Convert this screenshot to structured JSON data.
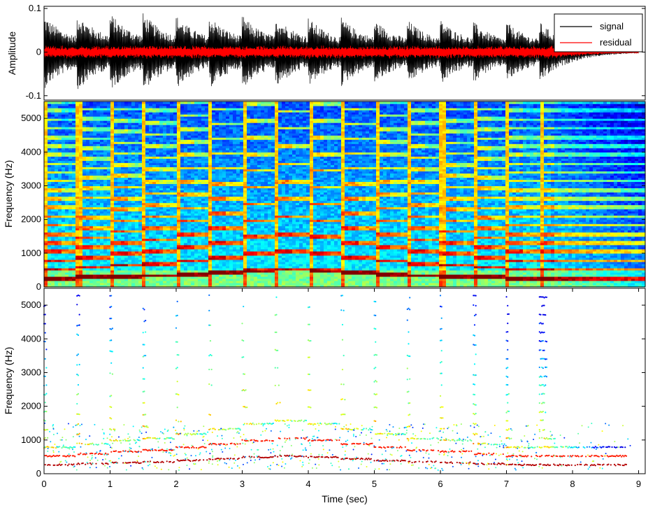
{
  "chart_data": [
    {
      "type": "line",
      "xlabel": "",
      "ylabel": "Amplitude",
      "xlim": [
        0,
        9.1
      ],
      "ylim": [
        -0.11,
        0.105
      ],
      "yticks": [
        -0.1,
        0,
        0.1
      ],
      "ytick_labels": [
        "-0.1",
        "0",
        "0.1"
      ],
      "grid": false,
      "legend_position": "top-right",
      "note_onsets_sec": [
        0.0,
        0.5,
        1.0,
        1.5,
        2.0,
        2.5,
        3.0,
        3.5,
        4.0,
        4.5,
        5.0,
        5.5,
        6.0,
        6.5,
        7.0,
        7.5
      ],
      "decay_end_sec": 9.0,
      "series": [
        {
          "name": "signal",
          "color": "#000000",
          "envelope_peaks": [
            0.085,
            0.09,
            0.09,
            0.09,
            0.085,
            0.085,
            0.085,
            0.085,
            0.08,
            0.08,
            0.075,
            0.075,
            0.075,
            0.07,
            0.07,
            0.07
          ]
        },
        {
          "name": "residual",
          "color": "#ff0000",
          "envelope_peaks": [
            0.012,
            0.01,
            0.01,
            0.01,
            0.01,
            0.01,
            0.01,
            0.01,
            0.01,
            0.01,
            0.01,
            0.01,
            0.01,
            0.01,
            0.01,
            0.01
          ]
        }
      ]
    },
    {
      "type": "heatmap",
      "xlabel": "",
      "ylabel": "Frequency (Hz)",
      "xlim": [
        0,
        9.1
      ],
      "ylim": [
        0,
        5500
      ],
      "yticks": [
        0,
        1000,
        2000,
        3000,
        4000,
        5000
      ],
      "ytick_labels": [
        "0",
        "1000",
        "2000",
        "3000",
        "4000",
        "5000"
      ],
      "colormap": "jet",
      "fundamentals_hz": [
        262,
        294,
        330,
        349,
        392,
        440,
        494,
        523,
        494,
        440,
        392,
        349,
        330,
        294,
        262,
        262
      ]
    },
    {
      "type": "scatter",
      "xlabel": "Time (sec)",
      "ylabel": "Frequency (Hz)",
      "xlim": [
        0,
        9.1
      ],
      "ylim": [
        0,
        5500
      ],
      "xticks": [
        0,
        1,
        2,
        3,
        4,
        5,
        6,
        7,
        8,
        9
      ],
      "xtick_labels": [
        "0",
        "1",
        "2",
        "3",
        "4",
        "5",
        "6",
        "7",
        "8",
        "9"
      ],
      "yticks": [
        0,
        1000,
        2000,
        3000,
        4000,
        5000
      ],
      "ytick_labels": [
        "0",
        "1000",
        "2000",
        "3000",
        "4000",
        "5000"
      ],
      "colormap": "jet",
      "fundamentals_hz": [
        262,
        294,
        330,
        349,
        392,
        440,
        494,
        523,
        494,
        440,
        392,
        349,
        330,
        294,
        262,
        262
      ]
    }
  ]
}
